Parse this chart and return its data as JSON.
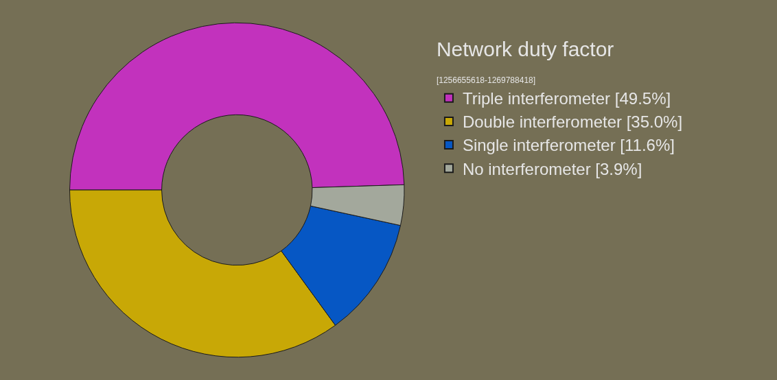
{
  "chart_data": {
    "type": "donut",
    "legend_title": "Network duty factor",
    "subtitle": "[1256655618-1269788418]",
    "categories": [
      "Triple interferometer [49.5%]",
      "Double interferometer [35.0%]",
      "Single interferometer [11.6%]",
      "No interferometer [3.9%]"
    ],
    "values": [
      49.5,
      35.0,
      11.6,
      3.9
    ],
    "colors": [
      "#c232bd",
      "#c8a806",
      "#0657c4",
      "#a3a89c"
    ],
    "legend": "right"
  }
}
